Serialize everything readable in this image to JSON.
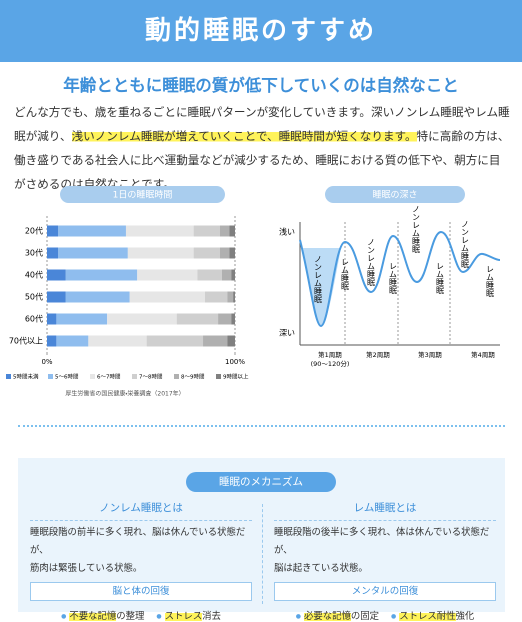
{
  "header": {
    "title": "動的睡眠のすすめ"
  },
  "intro": {
    "heading": "年齢とともに睡眠の質が低下していくのは自然なこと",
    "paragraph": {
      "before": "どんな方でも、歳を重ねるごとに睡眠パターンが変化していきます。深いノンレム睡眠やレム睡眠が減り、",
      "highlight": "浅いノンレム睡眠が増えていくことで、睡眠時間が短くなります。",
      "after": "特に高齢の方は、働き盛りである社会人に比べ運動量などが減少するため、睡眠における質の低下や、朝方に目がさめるのは自然なことです。"
    }
  },
  "chart_data": {
    "type": "bar",
    "orientation": "horizontal",
    "stacked": true,
    "title": "1日の睡眠時間",
    "categories": [
      "20代",
      "30代",
      "40代",
      "50代",
      "60代",
      "70代以上"
    ],
    "series": [
      {
        "name": "5時間未満",
        "color": "#4a86d8",
        "values": [
          6,
          6,
          10,
          10,
          5,
          5
        ]
      },
      {
        "name": "5～6時間",
        "color": "#8fbdee",
        "values": [
          36,
          37,
          38,
          34,
          27,
          17
        ]
      },
      {
        "name": "6～7時間",
        "color": "#e6e6e6",
        "values": [
          36,
          35,
          32,
          40,
          37,
          31
        ]
      },
      {
        "name": "7～8時間",
        "color": "#cfcfcf",
        "values": [
          14,
          14,
          13,
          12,
          22,
          30
        ]
      },
      {
        "name": "8～9時間",
        "color": "#b0b0b0",
        "values": [
          5,
          5,
          5,
          3,
          7,
          13
        ]
      },
      {
        "name": "9時間以上",
        "color": "#808080",
        "values": [
          3,
          3,
          2,
          1,
          2,
          4
        ]
      }
    ],
    "xlim": [
      0,
      100
    ],
    "xticks": [
      {
        "value": 0,
        "label": "0%"
      },
      {
        "value": 100,
        "label": "100%"
      }
    ],
    "source": "厚生労働省の国民健康・栄養調査（2017年）"
  },
  "depth_diagram": {
    "title": "睡眠の深さ",
    "shallow": "浅い",
    "deep": "深い",
    "stages": [
      "ノンレム睡眠",
      "レム睡眠",
      "ノンレム睡眠",
      "レム睡眠",
      "ノンレム睡眠",
      "レム睡眠",
      "ノンレム睡眠",
      "レム睡眠"
    ],
    "periods": [
      "第1周期",
      "第2周期",
      "第3周期",
      "第4周期"
    ],
    "period_note": "(90～120分)"
  },
  "mechanism": {
    "title": "睡眠のメカニズム",
    "columns": [
      {
        "heading": "ノンレム睡眠とは",
        "description": [
          "睡眠段階の前半に多く現れ、脳は休んでいる状態だが、",
          "筋肉は緊張している状態。"
        ],
        "benefit": "脳と体の回復",
        "points": [
          {
            "highlight": "不要な記憶",
            "text": "の整理"
          },
          {
            "highlight": "ストレス",
            "text": "消去"
          }
        ]
      },
      {
        "heading": "レム睡眠とは",
        "description": [
          "睡眠段階の後半に多く現れ、体は休んでいる状態だが、",
          "脳は起きている状態。"
        ],
        "benefit": "メンタルの回復",
        "points": [
          {
            "highlight": "必要な記憶",
            "text": "の固定"
          },
          {
            "highlight": "ストレス耐性",
            "text": "強化"
          }
        ]
      }
    ]
  }
}
